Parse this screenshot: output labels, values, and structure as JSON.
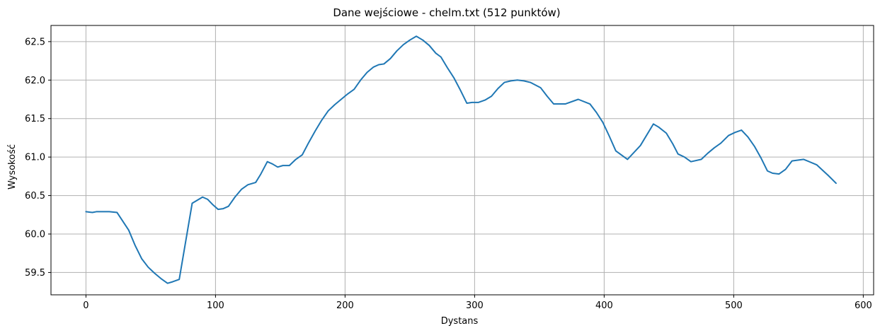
{
  "chart_data": {
    "type": "line",
    "title": "Dane wejściowe - chelm.txt (512 punktów)",
    "xlabel": "Dystans",
    "ylabel": "Wysokość",
    "xlim": [
      -27,
      608
    ],
    "ylim": [
      59.21,
      62.71
    ],
    "grid": true,
    "line_color": "#1f77b4",
    "x_ticks": [
      0,
      100,
      200,
      300,
      400,
      500,
      600
    ],
    "x_tick_labels": [
      "0",
      "100",
      "200",
      "300",
      "400",
      "500",
      "600"
    ],
    "y_ticks": [
      59.5,
      60.0,
      60.5,
      61.0,
      61.5,
      62.0,
      62.5
    ],
    "y_tick_labels": [
      "59.5",
      "60.0",
      "60.5",
      "61.0",
      "61.5",
      "62.0",
      "62.5"
    ],
    "series": [
      {
        "x": [
          0,
          5,
          8,
          12,
          18,
          24,
          33,
          38,
          43,
          48,
          53,
          58,
          63,
          67,
          72,
          82,
          90,
          94,
          98,
          102,
          106,
          110,
          115,
          120,
          125,
          131,
          135,
          140,
          144,
          148,
          152,
          157,
          162,
          167,
          172,
          177,
          182,
          187,
          192,
          197,
          202,
          207,
          212,
          217,
          222,
          226,
          230,
          235,
          240,
          245,
          250,
          255,
          260,
          265,
          270,
          274,
          279,
          284,
          289,
          294,
          298,
          303,
          308,
          313,
          318,
          323,
          328,
          333,
          338,
          343,
          351,
          356,
          361,
          370,
          380,
          389,
          394,
          399,
          404,
          409,
          418,
          428,
          438,
          442,
          448,
          453,
          457,
          462,
          467,
          475,
          480,
          485,
          490,
          496,
          501,
          506,
          511,
          516,
          521,
          526,
          530,
          535,
          540,
          545,
          554,
          564,
          573,
          579
        ],
        "y": [
          60.29,
          60.28,
          60.29,
          60.29,
          60.29,
          60.28,
          60.05,
          59.85,
          59.68,
          59.57,
          59.49,
          59.42,
          59.36,
          59.38,
          59.41,
          60.4,
          60.48,
          60.45,
          60.38,
          60.32,
          60.33,
          60.36,
          60.48,
          60.58,
          60.64,
          60.67,
          60.78,
          60.94,
          60.91,
          60.87,
          60.89,
          60.89,
          60.97,
          61.03,
          61.19,
          61.34,
          61.48,
          61.6,
          61.68,
          61.75,
          61.82,
          61.88,
          62.0,
          62.1,
          62.17,
          62.2,
          62.21,
          62.28,
          62.38,
          62.46,
          62.52,
          62.57,
          62.52,
          62.45,
          62.35,
          62.3,
          62.16,
          62.03,
          61.87,
          61.7,
          61.71,
          61.71,
          61.74,
          61.79,
          61.89,
          61.97,
          61.99,
          62.0,
          61.99,
          61.97,
          61.9,
          61.79,
          61.69,
          61.69,
          61.75,
          61.69,
          61.58,
          61.45,
          61.27,
          61.08,
          60.97,
          61.15,
          61.43,
          61.39,
          61.31,
          61.17,
          61.04,
          61.0,
          60.94,
          60.97,
          61.05,
          61.12,
          61.18,
          61.28,
          61.32,
          61.35,
          61.26,
          61.14,
          60.99,
          60.82,
          60.79,
          60.78,
          60.84,
          60.95,
          60.97,
          60.9,
          60.76,
          60.66
        ]
      }
    ]
  }
}
